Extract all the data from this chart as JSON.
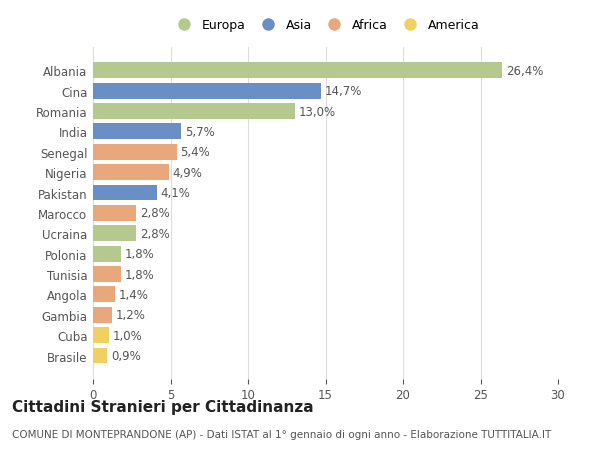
{
  "categories": [
    "Albania",
    "Cina",
    "Romania",
    "India",
    "Senegal",
    "Nigeria",
    "Pakistan",
    "Marocco",
    "Ucraina",
    "Polonia",
    "Tunisia",
    "Angola",
    "Gambia",
    "Cuba",
    "Brasile"
  ],
  "values": [
    26.4,
    14.7,
    13.0,
    5.7,
    5.4,
    4.9,
    4.1,
    2.8,
    2.8,
    1.8,
    1.8,
    1.4,
    1.2,
    1.0,
    0.9
  ],
  "labels": [
    "26,4%",
    "14,7%",
    "13,0%",
    "5,7%",
    "5,4%",
    "4,9%",
    "4,1%",
    "2,8%",
    "2,8%",
    "1,8%",
    "1,8%",
    "1,4%",
    "1,2%",
    "1,0%",
    "0,9%"
  ],
  "colors": [
    "#b5c98e",
    "#6a8fc7",
    "#b5c98e",
    "#6a8fc7",
    "#e8a87c",
    "#e8a87c",
    "#6a8fc7",
    "#e8a87c",
    "#b5c98e",
    "#b5c98e",
    "#e8a87c",
    "#e8a87c",
    "#e8a87c",
    "#f0d060",
    "#f0d060"
  ],
  "legend_labels": [
    "Europa",
    "Asia",
    "Africa",
    "America"
  ],
  "legend_colors": [
    "#b5c98e",
    "#6a8fc7",
    "#e8a87c",
    "#f0d060"
  ],
  "title": "Cittadini Stranieri per Cittadinanza",
  "subtitle": "COMUNE DI MONTEPRANDONE (AP) - Dati ISTAT al 1° gennaio di ogni anno - Elaborazione TUTTITALIA.IT",
  "xlim": [
    0,
    30
  ],
  "xticks": [
    0,
    5,
    10,
    15,
    20,
    25,
    30
  ],
  "background_color": "#ffffff",
  "bar_height": 0.78,
  "title_fontsize": 11,
  "subtitle_fontsize": 7.5,
  "label_fontsize": 8.5,
  "tick_fontsize": 8.5,
  "legend_fontsize": 9
}
